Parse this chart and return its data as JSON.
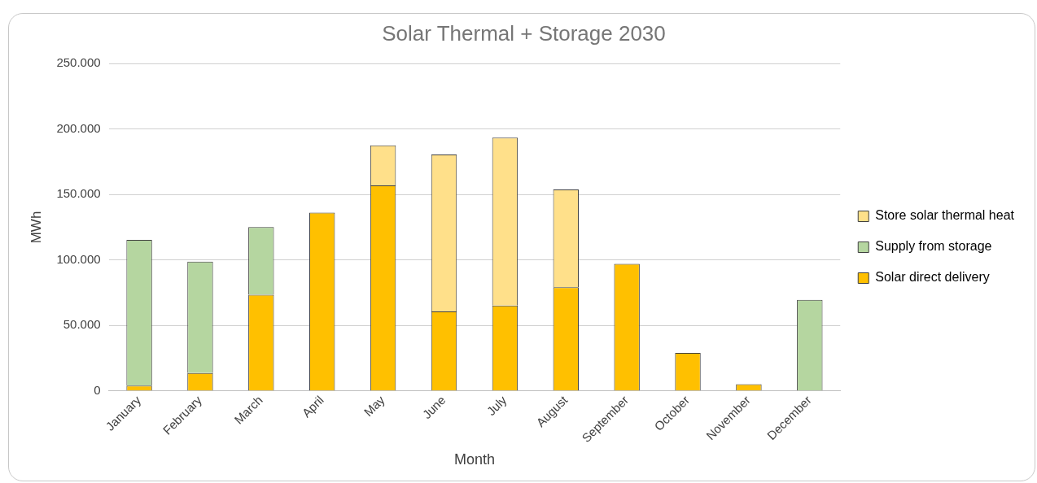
{
  "chart_data": {
    "type": "bar",
    "title": "Solar Thermal + Storage 2030",
    "xlabel": "Month",
    "ylabel": "MWh",
    "stacked": true,
    "grid": "y",
    "legend": "right",
    "categories": [
      "January",
      "February",
      "March",
      "April",
      "May",
      "June",
      "July",
      "August",
      "September",
      "October",
      "November",
      "December"
    ],
    "ylim": [
      0,
      250000
    ],
    "yticks": [
      {
        "value": 0,
        "label": "0"
      },
      {
        "value": 50000,
        "label": "50.000"
      },
      {
        "value": 100000,
        "label": "100.000"
      },
      {
        "value": 150000,
        "label": "150.000"
      },
      {
        "value": 200000,
        "label": "200.000"
      },
      {
        "value": 250000,
        "label": "250.000"
      }
    ],
    "series": [
      {
        "name": "Solar direct delivery",
        "color": "#ffc000",
        "values": [
          4000,
          13700,
          73400,
          136200,
          157000,
          60800,
          65300,
          79200,
          97000,
          29100,
          5100,
          null
        ]
      },
      {
        "name": "Supply from storage",
        "color": "#b5d6a0",
        "values": [
          111400,
          85000,
          51700,
          null,
          null,
          null,
          null,
          null,
          null,
          null,
          null,
          69600
        ]
      },
      {
        "name": "Store solar thermal heat",
        "color": "#ffe08a",
        "values": [
          null,
          null,
          null,
          null,
          30600,
          119700,
          128100,
          74700,
          null,
          null,
          null,
          null
        ]
      }
    ]
  }
}
